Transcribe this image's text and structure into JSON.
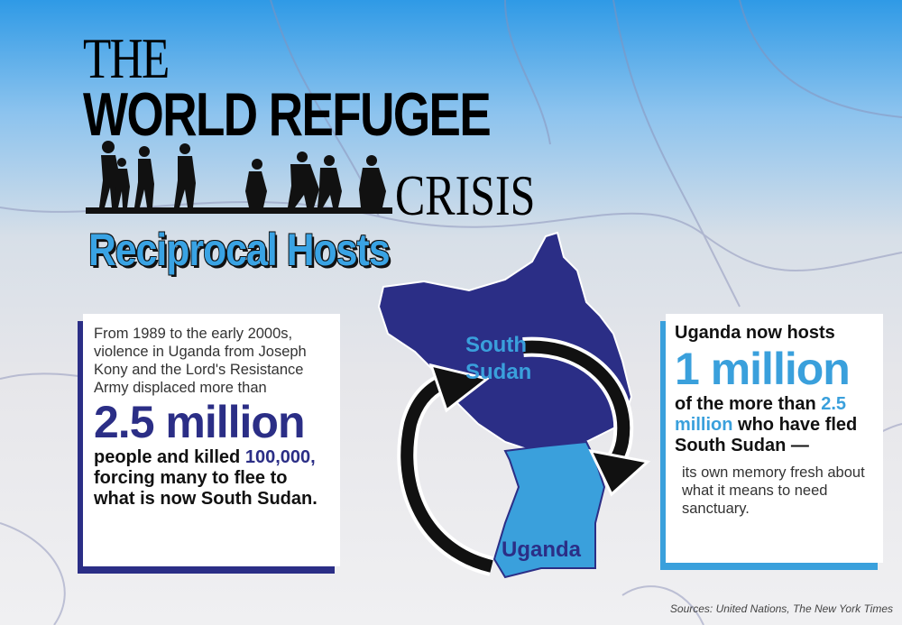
{
  "header": {
    "the": "THE",
    "title": "WORLD REFUGEE",
    "crisis": "CRISIS",
    "subtitle": "Reciprocal Hosts"
  },
  "left_box": {
    "intro": "From 1989 to the early 2000s, violence in Uganda from Joseph Kony and the Lord's Resistance Army displaced more than",
    "big_number": "2.5 million",
    "text_before": "people and killed",
    "highlight": "100,000,",
    "text_after": "forcing many to flee to what is now South Sudan."
  },
  "map": {
    "south_sudan": "South Sudan",
    "uganda": "Uganda"
  },
  "right_box": {
    "lead": "Uganda now hosts",
    "big_number": "1 million",
    "text_before": "of the more than",
    "highlight": "2.5 million",
    "text_after": "who have fled South Sudan —",
    "note": "its own memory fresh about what it means to need sanctuary."
  },
  "footer": {
    "sources": "Sources: United Nations, The New York Times"
  }
}
